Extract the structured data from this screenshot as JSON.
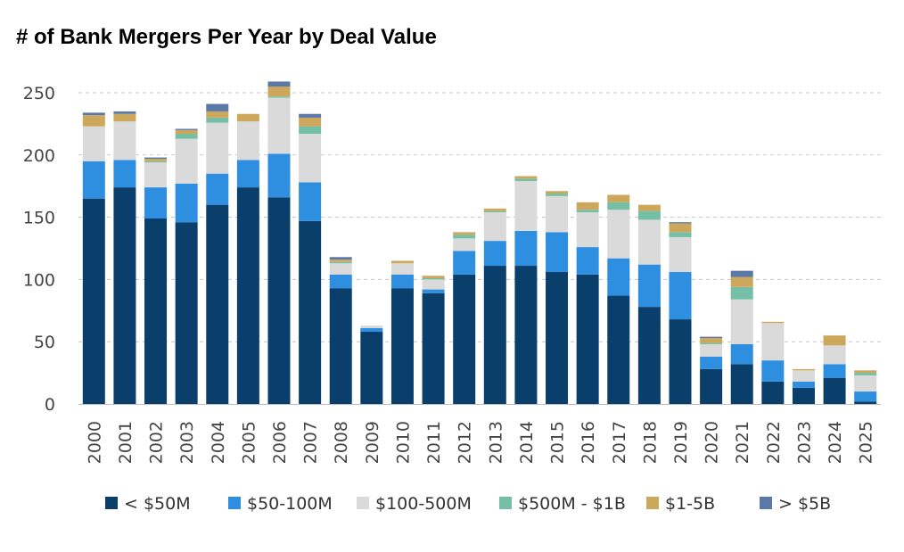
{
  "chart_data": {
    "type": "bar",
    "stacked": true,
    "title": "# of Bank Mergers Per Year by Deal Value",
    "xlabel": "",
    "ylabel": "",
    "ylim": [
      0,
      260
    ],
    "yticks": [
      "0",
      "50",
      "100",
      "150",
      "200",
      "250"
    ],
    "ytick_values": [
      0,
      50,
      100,
      150,
      200,
      250
    ],
    "grid": true,
    "legend_position": "bottom",
    "categories": [
      "2000",
      "2001",
      "2002",
      "2003",
      "2004",
      "2005",
      "2006",
      "2007",
      "2008",
      "2009",
      "2010",
      "2011",
      "2012",
      "2013",
      "2014",
      "2015",
      "2016",
      "2017",
      "2018",
      "2019",
      "2020",
      "2021",
      "2022",
      "2023",
      "2024",
      "2025"
    ],
    "series": [
      {
        "name": "< $50M",
        "color": "#0b3f6b",
        "values": [
          165,
          174,
          149,
          146,
          160,
          174,
          166,
          147,
          93,
          58,
          93,
          89,
          104,
          111,
          111,
          106,
          104,
          87,
          78,
          68,
          28,
          32,
          18,
          13,
          21,
          2
        ]
      },
      {
        "name": "$50-100M",
        "color": "#2e8ee0",
        "values": [
          30,
          22,
          25,
          31,
          25,
          22,
          35,
          31,
          11,
          3,
          11,
          3,
          19,
          20,
          28,
          32,
          22,
          30,
          34,
          38,
          10,
          16,
          17,
          5,
          11,
          8
        ]
      },
      {
        "name": "$100-500M",
        "color": "#dadada",
        "values": [
          28,
          31,
          20,
          36,
          41,
          31,
          45,
          39,
          9,
          2,
          9,
          8,
          10,
          23,
          40,
          29,
          28,
          39,
          36,
          28,
          10,
          36,
          30,
          9,
          15,
          13
        ]
      },
      {
        "name": "$500M - $1B",
        "color": "#74bfa6",
        "values": [
          0,
          0,
          1,
          4,
          4,
          0,
          1,
          6,
          1,
          0,
          0,
          1,
          3,
          1,
          2,
          2,
          2,
          6,
          7,
          4,
          1,
          10,
          0,
          0,
          0,
          2
        ]
      },
      {
        "name": "$1-5B",
        "color": "#cda85c",
        "values": [
          9,
          6,
          2,
          3,
          5,
          6,
          8,
          7,
          2,
          0,
          2,
          2,
          2,
          2,
          2,
          2,
          6,
          6,
          5,
          7,
          4,
          8,
          1,
          1,
          8,
          2
        ]
      },
      {
        "name": "> $5B",
        "color": "#5a79a8",
        "values": [
          2,
          2,
          1,
          1,
          6,
          0,
          4,
          3,
          2,
          0,
          0,
          0,
          0,
          0,
          0,
          0,
          0,
          0,
          0,
          1,
          1,
          5,
          0,
          0,
          0,
          0
        ]
      }
    ]
  }
}
